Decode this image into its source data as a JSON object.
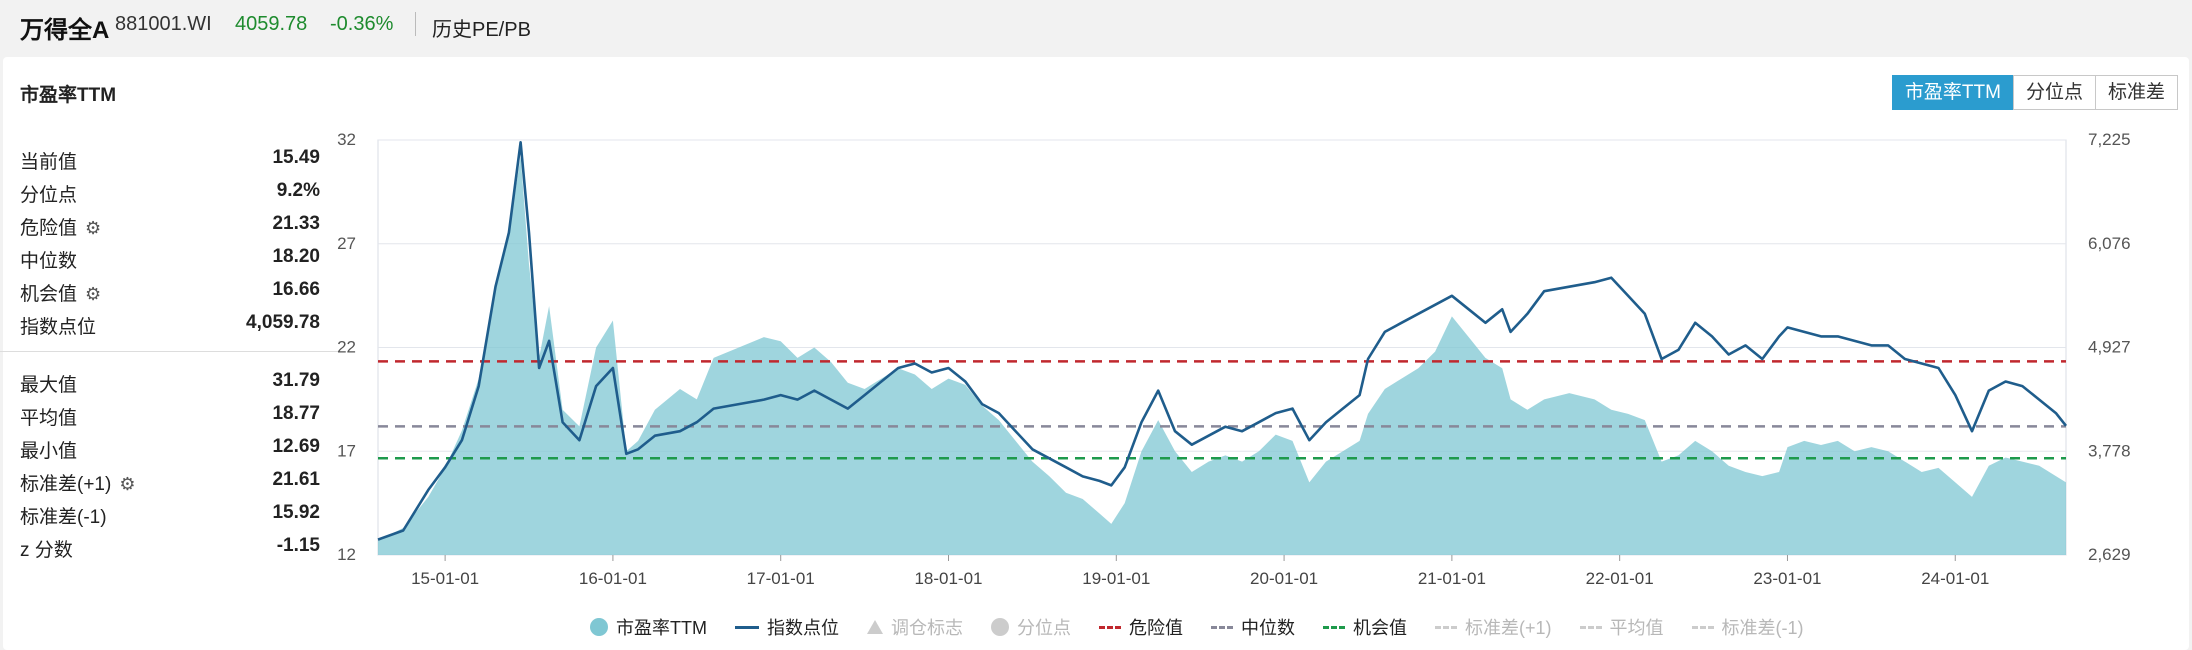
{
  "header": {
    "name": "万得全A",
    "code": "881001.WI",
    "price": "4059.78",
    "change": "-0.36%",
    "subtitle": "历史PE/PB"
  },
  "panel": {
    "title": "市盈率TTM",
    "tabs": [
      "市盈率TTM",
      "分位点",
      "标准差"
    ],
    "active_tab": "市盈率TTM"
  },
  "stats_top": [
    {
      "label": "当前值",
      "value": "15.49",
      "gear": false
    },
    {
      "label": "分位点",
      "value": "9.2%",
      "gear": false
    },
    {
      "label": "危险值",
      "value": "21.33",
      "gear": true
    },
    {
      "label": "中位数",
      "value": "18.20",
      "gear": false
    },
    {
      "label": "机会值",
      "value": "16.66",
      "gear": true
    },
    {
      "label": "指数点位",
      "value": "4,059.78",
      "gear": false
    }
  ],
  "stats_bottom": [
    {
      "label": "最大值",
      "value": "31.79",
      "gear": false
    },
    {
      "label": "平均值",
      "value": "18.77",
      "gear": false
    },
    {
      "label": "最小值",
      "value": "12.69",
      "gear": false
    },
    {
      "label": "标准差(+1)",
      "value": "21.61",
      "gear": true
    },
    {
      "label": "标准差(-1)",
      "value": "15.92",
      "gear": false
    },
    {
      "label": "z 分数",
      "value": "-1.15",
      "gear": false
    }
  ],
  "chart_data": {
    "type": "area",
    "x_ticks": [
      "15-01-01",
      "16-01-01",
      "17-01-01",
      "18-01-01",
      "19-01-01",
      "20-01-01",
      "21-01-01",
      "22-01-01",
      "23-01-01",
      "24-01-01"
    ],
    "x_range": [
      2014.6,
      2024.66
    ],
    "y_left_ticks": [
      "12",
      "17",
      "22",
      "27",
      "32"
    ],
    "y_left_range": [
      12,
      32
    ],
    "y_right_ticks": [
      "2,629",
      "3,778",
      "4,927",
      "6,076",
      "7,225"
    ],
    "y_right_range": [
      2629,
      7225
    ],
    "grid": true,
    "reference_lines": [
      {
        "name": "危险值",
        "value": 21.33,
        "color": "#c0282e"
      },
      {
        "name": "中位数",
        "value": 18.2,
        "color": "#888899"
      },
      {
        "name": "机会值",
        "value": 16.66,
        "color": "#1e9a4c"
      }
    ],
    "series": [
      {
        "name": "市盈率TTM",
        "kind": "area",
        "color": "#7fc7d3",
        "points": [
          [
            2014.6,
            12.7
          ],
          [
            2014.75,
            13.3
          ],
          [
            2014.9,
            14.8
          ],
          [
            2015.0,
            16.2
          ],
          [
            2015.1,
            18.0
          ],
          [
            2015.2,
            20.5
          ],
          [
            2015.3,
            25.0
          ],
          [
            2015.38,
            27.5
          ],
          [
            2015.45,
            31.2
          ],
          [
            2015.5,
            26.0
          ],
          [
            2015.56,
            21.5
          ],
          [
            2015.62,
            24.0
          ],
          [
            2015.7,
            19.0
          ],
          [
            2015.8,
            18.2
          ],
          [
            2015.9,
            22.0
          ],
          [
            2016.0,
            23.3
          ],
          [
            2016.08,
            17.0
          ],
          [
            2016.15,
            17.5
          ],
          [
            2016.25,
            19.0
          ],
          [
            2016.4,
            20.0
          ],
          [
            2016.5,
            19.5
          ],
          [
            2016.6,
            21.5
          ],
          [
            2016.75,
            22.0
          ],
          [
            2016.9,
            22.5
          ],
          [
            2017.0,
            22.3
          ],
          [
            2017.1,
            21.5
          ],
          [
            2017.2,
            22.0
          ],
          [
            2017.3,
            21.3
          ],
          [
            2017.4,
            20.3
          ],
          [
            2017.5,
            20.0
          ],
          [
            2017.6,
            20.5
          ],
          [
            2017.7,
            21.0
          ],
          [
            2017.8,
            20.7
          ],
          [
            2017.9,
            20.0
          ],
          [
            2018.0,
            20.5
          ],
          [
            2018.1,
            20.2
          ],
          [
            2018.2,
            19.2
          ],
          [
            2018.3,
            18.5
          ],
          [
            2018.4,
            17.5
          ],
          [
            2018.5,
            16.5
          ],
          [
            2018.6,
            15.8
          ],
          [
            2018.7,
            15.0
          ],
          [
            2018.8,
            14.7
          ],
          [
            2018.9,
            14.0
          ],
          [
            2018.97,
            13.5
          ],
          [
            2019.05,
            14.5
          ],
          [
            2019.15,
            17.0
          ],
          [
            2019.25,
            18.5
          ],
          [
            2019.35,
            17.0
          ],
          [
            2019.45,
            16.0
          ],
          [
            2019.55,
            16.5
          ],
          [
            2019.65,
            16.8
          ],
          [
            2019.75,
            16.5
          ],
          [
            2019.85,
            17.0
          ],
          [
            2019.95,
            17.8
          ],
          [
            2020.05,
            17.5
          ],
          [
            2020.15,
            15.5
          ],
          [
            2020.25,
            16.5
          ],
          [
            2020.35,
            17.0
          ],
          [
            2020.45,
            17.5
          ],
          [
            2020.5,
            18.8
          ],
          [
            2020.6,
            20.0
          ],
          [
            2020.7,
            20.5
          ],
          [
            2020.8,
            21.0
          ],
          [
            2020.9,
            21.8
          ],
          [
            2021.0,
            23.5
          ],
          [
            2021.1,
            22.5
          ],
          [
            2021.2,
            21.5
          ],
          [
            2021.3,
            21.0
          ],
          [
            2021.35,
            19.5
          ],
          [
            2021.45,
            19.0
          ],
          [
            2021.55,
            19.5
          ],
          [
            2021.7,
            19.8
          ],
          [
            2021.85,
            19.5
          ],
          [
            2021.95,
            19.0
          ],
          [
            2022.05,
            18.8
          ],
          [
            2022.15,
            18.5
          ],
          [
            2022.25,
            16.5
          ],
          [
            2022.35,
            16.8
          ],
          [
            2022.45,
            17.5
          ],
          [
            2022.55,
            17.0
          ],
          [
            2022.65,
            16.3
          ],
          [
            2022.75,
            16.0
          ],
          [
            2022.85,
            15.8
          ],
          [
            2022.95,
            16.0
          ],
          [
            2023.0,
            17.2
          ],
          [
            2023.1,
            17.5
          ],
          [
            2023.2,
            17.3
          ],
          [
            2023.3,
            17.5
          ],
          [
            2023.4,
            17.0
          ],
          [
            2023.5,
            17.2
          ],
          [
            2023.6,
            17.0
          ],
          [
            2023.7,
            16.5
          ],
          [
            2023.8,
            16.0
          ],
          [
            2023.9,
            16.2
          ],
          [
            2024.0,
            15.5
          ],
          [
            2024.1,
            14.8
          ],
          [
            2024.2,
            16.3
          ],
          [
            2024.3,
            16.7
          ],
          [
            2024.4,
            16.5
          ],
          [
            2024.5,
            16.3
          ],
          [
            2024.6,
            15.8
          ],
          [
            2024.66,
            15.5
          ]
        ]
      },
      {
        "name": "指数点位",
        "kind": "line",
        "color": "#1f5d8c",
        "points": [
          [
            2014.6,
            2800
          ],
          [
            2014.75,
            2900
          ],
          [
            2014.9,
            3350
          ],
          [
            2015.0,
            3600
          ],
          [
            2015.1,
            3900
          ],
          [
            2015.2,
            4500
          ],
          [
            2015.3,
            5600
          ],
          [
            2015.38,
            6200
          ],
          [
            2015.45,
            7200
          ],
          [
            2015.5,
            6200
          ],
          [
            2015.56,
            4700
          ],
          [
            2015.62,
            5000
          ],
          [
            2015.7,
            4100
          ],
          [
            2015.8,
            3900
          ],
          [
            2015.9,
            4500
          ],
          [
            2016.0,
            4700
          ],
          [
            2016.08,
            3750
          ],
          [
            2016.15,
            3800
          ],
          [
            2016.25,
            3950
          ],
          [
            2016.4,
            4000
          ],
          [
            2016.5,
            4100
          ],
          [
            2016.6,
            4250
          ],
          [
            2016.75,
            4300
          ],
          [
            2016.9,
            4350
          ],
          [
            2017.0,
            4400
          ],
          [
            2017.1,
            4350
          ],
          [
            2017.2,
            4450
          ],
          [
            2017.3,
            4350
          ],
          [
            2017.4,
            4250
          ],
          [
            2017.5,
            4400
          ],
          [
            2017.6,
            4550
          ],
          [
            2017.7,
            4700
          ],
          [
            2017.8,
            4750
          ],
          [
            2017.9,
            4650
          ],
          [
            2018.0,
            4700
          ],
          [
            2018.1,
            4550
          ],
          [
            2018.2,
            4300
          ],
          [
            2018.3,
            4200
          ],
          [
            2018.4,
            4000
          ],
          [
            2018.5,
            3800
          ],
          [
            2018.6,
            3700
          ],
          [
            2018.7,
            3600
          ],
          [
            2018.8,
            3500
          ],
          [
            2018.9,
            3450
          ],
          [
            2018.97,
            3400
          ],
          [
            2019.05,
            3600
          ],
          [
            2019.15,
            4100
          ],
          [
            2019.25,
            4450
          ],
          [
            2019.35,
            4000
          ],
          [
            2019.45,
            3850
          ],
          [
            2019.55,
            3950
          ],
          [
            2019.65,
            4050
          ],
          [
            2019.75,
            4000
          ],
          [
            2019.85,
            4100
          ],
          [
            2019.95,
            4200
          ],
          [
            2020.05,
            4250
          ],
          [
            2020.15,
            3900
          ],
          [
            2020.25,
            4100
          ],
          [
            2020.35,
            4250
          ],
          [
            2020.45,
            4400
          ],
          [
            2020.5,
            4800
          ],
          [
            2020.6,
            5100
          ],
          [
            2020.7,
            5200
          ],
          [
            2020.8,
            5300
          ],
          [
            2020.9,
            5400
          ],
          [
            2021.0,
            5500
          ],
          [
            2021.1,
            5350
          ],
          [
            2021.2,
            5200
          ],
          [
            2021.3,
            5350
          ],
          [
            2021.35,
            5100
          ],
          [
            2021.45,
            5300
          ],
          [
            2021.55,
            5550
          ],
          [
            2021.7,
            5600
          ],
          [
            2021.85,
            5650
          ],
          [
            2021.95,
            5700
          ],
          [
            2022.05,
            5500
          ],
          [
            2022.15,
            5300
          ],
          [
            2022.25,
            4800
          ],
          [
            2022.35,
            4900
          ],
          [
            2022.45,
            5200
          ],
          [
            2022.55,
            5050
          ],
          [
            2022.65,
            4850
          ],
          [
            2022.75,
            4950
          ],
          [
            2022.85,
            4800
          ],
          [
            2022.95,
            5050
          ],
          [
            2023.0,
            5150
          ],
          [
            2023.1,
            5100
          ],
          [
            2023.2,
            5050
          ],
          [
            2023.3,
            5050
          ],
          [
            2023.4,
            5000
          ],
          [
            2023.5,
            4950
          ],
          [
            2023.6,
            4950
          ],
          [
            2023.7,
            4800
          ],
          [
            2023.8,
            4750
          ],
          [
            2023.9,
            4700
          ],
          [
            2024.0,
            4400
          ],
          [
            2024.1,
            4000
          ],
          [
            2024.2,
            4450
          ],
          [
            2024.3,
            4550
          ],
          [
            2024.4,
            4500
          ],
          [
            2024.5,
            4350
          ],
          [
            2024.6,
            4200
          ],
          [
            2024.66,
            4059.78
          ]
        ]
      }
    ]
  },
  "legend": [
    {
      "label": "市盈率TTM",
      "symbol": "circle",
      "color": "#7fc7d3",
      "active": true
    },
    {
      "label": "指数点位",
      "symbol": "line",
      "color": "#1f5d8c",
      "active": true
    },
    {
      "label": "调仓标志",
      "symbol": "triangle",
      "color": "#cccccc",
      "active": false
    },
    {
      "label": "分位点",
      "symbol": "circle",
      "color": "#cccccc",
      "active": false
    },
    {
      "label": "危险值",
      "symbol": "dash",
      "color": "#c0282e",
      "active": true
    },
    {
      "label": "中位数",
      "symbol": "dash",
      "color": "#888899",
      "active": true
    },
    {
      "label": "机会值",
      "symbol": "dash",
      "color": "#1e9a4c",
      "active": true
    },
    {
      "label": "标准差(+1)",
      "symbol": "dash",
      "color": "#cccccc",
      "active": false
    },
    {
      "label": "平均值",
      "symbol": "dash",
      "color": "#cccccc",
      "active": false
    },
    {
      "label": "标准差(-1)",
      "symbol": "dash",
      "color": "#cccccc",
      "active": false
    }
  ]
}
